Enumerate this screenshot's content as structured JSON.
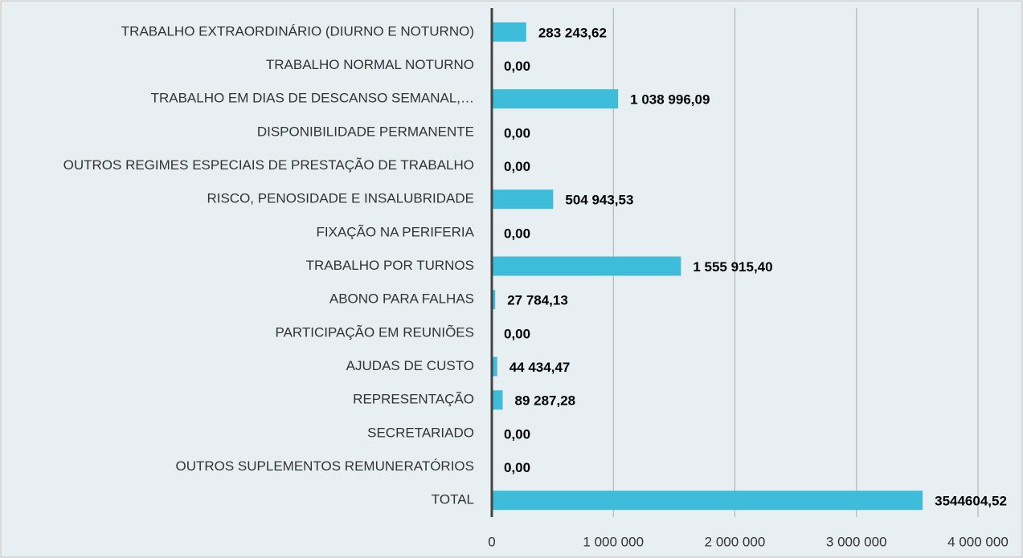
{
  "chart_data": {
    "type": "bar",
    "orientation": "horizontal",
    "categories": [
      "TRABALHO EXTRAORDINÁRIO (DIURNO E NOTURNO)",
      "TRABALHO NORMAL NOTURNO",
      "TRABALHO EM DIAS DE DESCANSO SEMANAL,…",
      "DISPONIBILIDADE PERMANENTE",
      "OUTROS REGIMES ESPECIAIS DE PRESTAÇÃO DE TRABALHO",
      "RISCO, PENOSIDADE E INSALUBRIDADE",
      "FIXAÇÃO NA PERIFERIA",
      "TRABALHO POR TURNOS",
      "ABONO PARA FALHAS",
      "PARTICIPAÇÃO EM REUNIÕES",
      "AJUDAS DE CUSTO",
      "REPRESENTAÇÃO",
      "SECRETARIADO",
      "OUTROS SUPLEMENTOS REMUNERATÓRIOS",
      "TOTAL"
    ],
    "values": [
      283243.62,
      0,
      1038996.09,
      0,
      0,
      504943.53,
      0,
      1555915.4,
      27784.13,
      0,
      44434.47,
      89287.28,
      0,
      0,
      3544604.52
    ],
    "value_labels": [
      "283 243,62",
      "0,00",
      "1 038 996,09",
      "0,00",
      "0,00",
      "504 943,53",
      "0,00",
      "1 555 915,40",
      "27 784,13",
      "0,00",
      "44 434,47",
      "89 287,28",
      "0,00",
      "0,00",
      "3544604,52"
    ],
    "color": "#3dbdd9",
    "xlim": [
      0,
      4000000
    ],
    "xticks": [
      0,
      {
        "value": 1000000,
        "label": "1 000 000"
      },
      {
        "value": 2000000,
        "label": "2 000 000"
      },
      {
        "value": 3000000,
        "label": "3 000 000"
      },
      {
        "value": 4000000,
        "label": "4 000 000"
      }
    ],
    "grid": true
  }
}
